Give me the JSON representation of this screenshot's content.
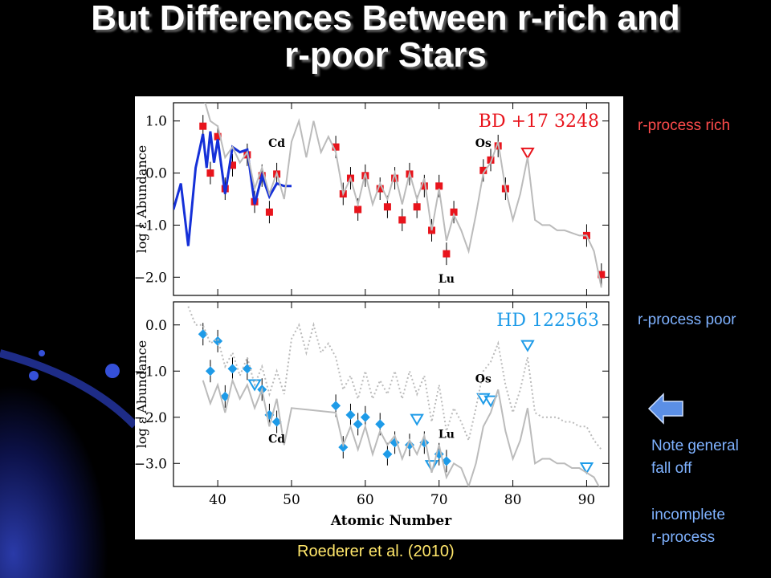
{
  "slide": {
    "title_line1": "But Differences Between r-rich and",
    "title_line2": "r-poor Stars",
    "label_rich": "r-process rich",
    "label_poor": "r-process poor",
    "note_line1": "Note general",
    "note_line2": "fall off",
    "note_line3": "incomplete",
    "note_line4": "r-process",
    "citation": "Roederer et al. (2010)",
    "arrow_icon": "left-arrow-icon",
    "colors": {
      "rich": "#ff4c4c",
      "poor": "#7fb2ff",
      "citation": "#ffe66a",
      "arrow": "#5b8fe6"
    }
  },
  "chart_data": [
    {
      "type": "scatter",
      "title": "BD +17 3248",
      "ylabel": "log ε Abundance",
      "xlabel": "",
      "xlim": [
        34,
        93
      ],
      "ylim": [
        -2.35,
        1.35
      ],
      "yticks": [
        1.0,
        0.0,
        -1.0,
        -2.0
      ],
      "ytick_labels": [
        "1.0",
        "0.0",
        "−1.0",
        "−2.0"
      ],
      "xticks": [
        40,
        50,
        60,
        70,
        80,
        90
      ],
      "annotations": [
        {
          "text": "Cd",
          "x": 48,
          "y": 0.5
        },
        {
          "text": "Os",
          "x": 76,
          "y": 0.5
        },
        {
          "text": "Lu",
          "x": 71,
          "y": -2.1
        }
      ],
      "series": [
        {
          "name": "measured",
          "marker": "square",
          "color": "#e8141c",
          "x": [
            38,
            39,
            40,
            41,
            42,
            44,
            45,
            46,
            47,
            48,
            56,
            57,
            58,
            59,
            60,
            62,
            63,
            64,
            65,
            66,
            67,
            68,
            69,
            70,
            71,
            72,
            76,
            77,
            78,
            79,
            90,
            92
          ],
          "y": [
            0.9,
            0.0,
            0.7,
            -0.3,
            0.15,
            0.35,
            -0.55,
            -0.05,
            -0.75,
            -0.02,
            0.5,
            -0.4,
            -0.1,
            -0.7,
            -0.05,
            -0.3,
            -0.65,
            -0.1,
            -0.9,
            -0.02,
            -0.65,
            -0.25,
            -1.1,
            -0.25,
            -1.55,
            -0.75,
            0.05,
            0.25,
            0.52,
            -0.3,
            -1.2,
            -1.95
          ]
        },
        {
          "name": "upper limit",
          "marker": "triangle-down",
          "color": "#e8141c",
          "x": [
            82
          ],
          "y": [
            0.38
          ]
        },
        {
          "name": "model (blue)",
          "line": true,
          "color": "#1530d8",
          "x": [
            34,
            35,
            36,
            37,
            38,
            38.5,
            39,
            39.5,
            40,
            41,
            42,
            43,
            44,
            45,
            46,
            47,
            48,
            49,
            50
          ],
          "y": [
            -0.7,
            -0.2,
            -1.4,
            0.1,
            0.75,
            0.1,
            0.8,
            0.2,
            0.65,
            -0.4,
            0.5,
            0.4,
            0.45,
            -0.6,
            -0.05,
            -0.45,
            -0.2,
            -0.25,
            -0.25
          ]
        },
        {
          "name": "model (gray)",
          "line": true,
          "color": "#bbbbbb",
          "x": [
            38,
            39,
            40,
            41,
            42,
            43,
            44,
            45,
            46,
            47,
            48,
            49,
            50,
            51,
            52,
            53,
            54,
            55,
            56,
            57,
            58,
            59,
            60,
            61,
            62,
            63,
            64,
            65,
            66,
            67,
            68,
            69,
            70,
            71,
            72,
            73,
            74,
            75,
            76,
            77,
            78,
            79,
            80,
            81,
            82,
            83,
            84,
            85,
            86,
            87,
            88,
            89,
            90,
            91,
            92
          ],
          "y": [
            1.5,
            1.0,
            0.9,
            0.3,
            0.5,
            0.2,
            0.4,
            -0.3,
            0.1,
            -0.4,
            0.0,
            -0.5,
            0.6,
            1.0,
            0.3,
            1.0,
            0.4,
            0.7,
            0.4,
            -0.4,
            -0.1,
            -0.6,
            0.0,
            -0.6,
            -0.2,
            -0.5,
            0.0,
            -0.6,
            0.0,
            -0.5,
            -0.1,
            -1.1,
            -0.3,
            -1.3,
            -0.8,
            -1.1,
            -1.5,
            -0.8,
            0.0,
            0.2,
            0.6,
            -0.3,
            -0.9,
            -0.4,
            0.3,
            -0.9,
            -1.0,
            -1.0,
            -1.1,
            -1.1,
            -1.15,
            -1.2,
            -1.2,
            -1.5,
            -2.2
          ]
        }
      ]
    },
    {
      "type": "scatter",
      "title": "HD 122563",
      "ylabel": "log ε Abundance",
      "xlabel": "Atomic Number",
      "xlim": [
        34,
        93
      ],
      "ylim": [
        -3.5,
        0.5
      ],
      "yticks": [
        0.0,
        -1.0,
        -2.0,
        -3.0
      ],
      "ytick_labels": [
        "0.0",
        "−1.0",
        "−2.0",
        "−3.0"
      ],
      "xticks": [
        40,
        50,
        60,
        70,
        80,
        90
      ],
      "xtick_labels": [
        "40",
        "50",
        "60",
        "70",
        "80",
        "90"
      ],
      "annotations": [
        {
          "text": "Cd",
          "x": 48,
          "y": -2.55
        },
        {
          "text": "Os",
          "x": 76,
          "y": -1.25
        },
        {
          "text": "Lu",
          "x": 71,
          "y": -2.45
        }
      ],
      "series": [
        {
          "name": "measured",
          "marker": "diamond",
          "color": "#1e9be8",
          "x": [
            38,
            39,
            40,
            41,
            42,
            44,
            46,
            47,
            48,
            56,
            57,
            58,
            59,
            60,
            62,
            63,
            64,
            66,
            68,
            70,
            71
          ],
          "y": [
            -0.2,
            -1.0,
            -0.35,
            -1.55,
            -0.95,
            -0.95,
            -1.4,
            -1.95,
            -2.1,
            -1.75,
            -2.65,
            -1.95,
            -2.15,
            -2.0,
            -2.15,
            -2.8,
            -2.55,
            -2.6,
            -2.55,
            -2.8,
            -2.95
          ]
        },
        {
          "name": "upper limit",
          "marker": "triangle-down",
          "color": "#1e9be8",
          "x": [
            45,
            67,
            69,
            76,
            77,
            82,
            90
          ],
          "y": [
            -1.3,
            -2.05,
            -3.05,
            -1.6,
            -1.65,
            -0.45,
            -3.1
          ]
        },
        {
          "name": "scaled rich (dotted)",
          "line": true,
          "dashed": true,
          "color": "#bbbbbb",
          "x": [
            36,
            37,
            38,
            39,
            40,
            41,
            42,
            43,
            44,
            45,
            46,
            47,
            48,
            49,
            50,
            51,
            52,
            53,
            54,
            55,
            56,
            57,
            58,
            59,
            60,
            61,
            62,
            63,
            64,
            65,
            66,
            67,
            68,
            69,
            70,
            71,
            72,
            73,
            74,
            75,
            76,
            77,
            78,
            79,
            80,
            81,
            82,
            83,
            84,
            85,
            86,
            87,
            88,
            89,
            90,
            91,
            92
          ],
          "y": [
            0.4,
            0.0,
            0.0,
            -0.4,
            -0.3,
            -0.9,
            -0.6,
            -1.1,
            -0.7,
            -1.3,
            -0.9,
            -1.5,
            -1.0,
            -1.5,
            -0.3,
            0.0,
            -0.6,
            0.0,
            -0.6,
            -0.4,
            -0.7,
            -1.4,
            -1.1,
            -1.6,
            -1.0,
            -1.6,
            -1.2,
            -1.5,
            -1.0,
            -1.6,
            -1.0,
            -1.5,
            -1.1,
            -2.1,
            -1.3,
            -2.3,
            -1.8,
            -2.1,
            -2.5,
            -1.8,
            -1.0,
            -0.8,
            -0.4,
            -1.3,
            -1.9,
            -1.4,
            -0.7,
            -1.9,
            -2.0,
            -2.0,
            -2.0,
            -2.1,
            -2.1,
            -2.2,
            -2.2,
            -2.5,
            -2.7
          ]
        },
        {
          "name": "model (gray)",
          "line": true,
          "color": "#bbbbbb",
          "x": [
            38,
            39,
            40,
            41,
            42,
            43,
            44,
            45,
            46,
            47,
            48,
            49,
            50,
            56,
            57,
            58,
            59,
            60,
            61,
            62,
            63,
            64,
            65,
            66,
            67,
            68,
            69,
            70,
            71,
            72,
            73,
            74,
            75,
            76,
            77,
            78,
            79,
            80,
            81,
            82,
            83,
            84,
            85,
            86,
            87,
            88,
            89,
            90,
            91,
            92
          ],
          "y": [
            -1.2,
            -1.7,
            -1.3,
            -1.9,
            -1.2,
            -1.6,
            -1.3,
            -1.8,
            -1.4,
            -2.2,
            -1.6,
            -2.6,
            -1.8,
            -1.9,
            -2.6,
            -2.2,
            -2.7,
            -2.2,
            -2.8,
            -2.3,
            -2.6,
            -2.4,
            -2.9,
            -2.5,
            -2.8,
            -2.4,
            -3.2,
            -2.6,
            -3.3,
            -3.0,
            -3.1,
            -3.5,
            -3.0,
            -2.2,
            -1.9,
            -1.4,
            -2.3,
            -2.9,
            -2.5,
            -1.8,
            -3.0,
            -2.9,
            -2.9,
            -3.0,
            -3.0,
            -3.1,
            -3.1,
            -3.2,
            -3.3,
            -3.6
          ]
        }
      ]
    }
  ]
}
